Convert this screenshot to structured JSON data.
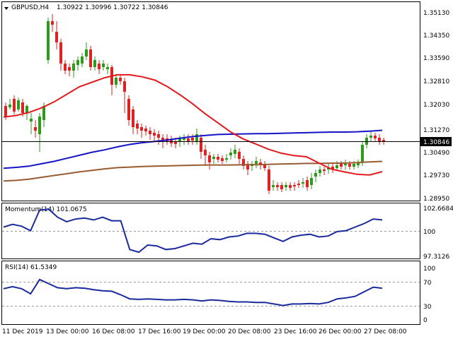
{
  "header": {
    "symbol_tf": "GBPUSD,H4",
    "ohlc": "1.30922 1.30996 1.30722 1.30846",
    "triangle_icon": "triangle-down-icon"
  },
  "current_price_label": "1.30846",
  "panels": {
    "main": {
      "price_ticks": [
        "1.35130",
        "1.34350",
        "1.33590",
        "1.32810",
        "1.32030",
        "1.31270",
        "1.30490",
        "1.29730",
        "1.28950"
      ]
    },
    "momentum": {
      "label": "Momentum(14) 101.0675",
      "ticks": [
        "102.6684",
        "100",
        "97.3126"
      ]
    },
    "rsi": {
      "label": "RSI(14) 61.5349",
      "ticks": [
        "100",
        "70",
        "30",
        "0"
      ]
    }
  },
  "time_labels": [
    "11 Dec 2019",
    "13 Dec 00:00",
    "16 Dec 08:00",
    "17 Dec 16:00",
    "19 Dec 00:00",
    "20 Dec 08:00",
    "23 Dec 16:00",
    "26 Dec 00:00",
    "27 Dec 08:00"
  ],
  "colors": {
    "bull": "#2e9a1c",
    "bear": "#dd2222",
    "ma_fast": "#e31a1c",
    "ma_mid": "#1414c8",
    "ma_slow": "#9a5b30",
    "indicator": "#1a2a9c",
    "level_line": "#9a9a9a"
  },
  "chart_data": {
    "type": "line",
    "main": {
      "ma_red": [
        1.3165,
        1.317,
        1.318,
        1.3195,
        1.3215,
        1.324,
        1.3265,
        1.328,
        1.3295,
        1.3305,
        1.3305,
        1.3298,
        1.3287,
        1.3265,
        1.3238,
        1.3208,
        1.3175,
        1.3145,
        1.3115,
        1.3092,
        1.3075,
        1.3058,
        1.3045,
        1.3037,
        1.3033,
        1.3012,
        1.2992,
        1.2983,
        1.2975,
        1.2973,
        1.2984
      ],
      "ma_blue": [
        1.2995,
        1.2998,
        1.3002,
        1.301,
        1.3018,
        1.3028,
        1.3038,
        1.3048,
        1.3056,
        1.3066,
        1.3074,
        1.308,
        1.3084,
        1.3089,
        1.3095,
        1.31,
        1.3104,
        1.3107,
        1.3108,
        1.3109,
        1.311,
        1.311,
        1.3111,
        1.3112,
        1.3113,
        1.3114,
        1.3115,
        1.3115,
        1.3116,
        1.3118,
        1.3121
      ],
      "ma_brown": [
        1.2953,
        1.2955,
        1.2959,
        1.2965,
        1.2971,
        1.2977,
        1.2983,
        1.2988,
        1.2993,
        1.2997,
        1.2999,
        1.3001,
        1.3002,
        1.3003,
        1.3004,
        1.3005,
        1.3006,
        1.3006,
        1.3006,
        1.3007,
        1.3007,
        1.3008,
        1.3009,
        1.301,
        1.3011,
        1.3011,
        1.3012,
        1.3012,
        1.3014,
        1.3016,
        1.3018
      ]
    },
    "momentum": [
      100.5,
      100.8,
      100.6,
      100.1,
      102.4,
      102.5,
      101.6,
      101.1,
      101.4,
      101.5,
      101.3,
      101.6,
      101.2,
      101.2,
      98.0,
      97.7,
      98.5,
      98.4,
      98.0,
      98.1,
      98.4,
      98.7,
      98.6,
      99.2,
      99.1,
      99.4,
      99.5,
      99.8,
      99.8,
      99.7,
      99.3,
      98.9,
      99.4,
      99.6,
      99.7,
      99.4,
      99.5,
      100.0,
      100.1,
      100.5,
      100.9,
      101.4,
      101.3
    ],
    "rsi": [
      60,
      64,
      60,
      50,
      78,
      70,
      62,
      60,
      62,
      61,
      58,
      56,
      55,
      48,
      40,
      39,
      40,
      39,
      38,
      38,
      39,
      38,
      36,
      38,
      37,
      35,
      34,
      34,
      33,
      33,
      30,
      27,
      30,
      30,
      31,
      30,
      33,
      40,
      42,
      45,
      54,
      63,
      61
    ]
  }
}
